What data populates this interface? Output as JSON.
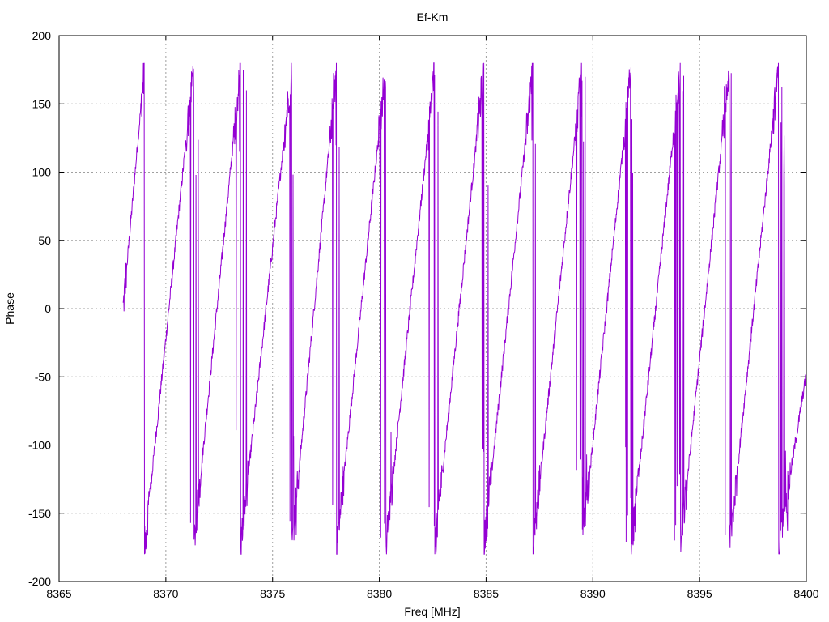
{
  "chart_data": {
    "type": "line",
    "title": "Ef-Km",
    "xlabel": "Freq [MHz]",
    "ylabel": "Phase",
    "xlim": [
      8365,
      8400
    ],
    "ylim": [
      -200,
      200
    ],
    "xticks": [
      8365,
      8370,
      8375,
      8380,
      8385,
      8390,
      8395,
      8400
    ],
    "yticks": [
      -200,
      -150,
      -100,
      -50,
      0,
      50,
      100,
      150,
      200
    ],
    "grid": true,
    "line_color": "#9400d3",
    "series": [
      {
        "name": "",
        "x_range": [
          8368.0,
          8400.0
        ],
        "phase_start": 0,
        "wrap_freqs": [
          8369.0,
          8371.3,
          8373.5,
          8375.9,
          8378.0,
          8380.3,
          8382.6,
          8384.9,
          8387.2,
          8389.5,
          8391.8,
          8394.1,
          8396.4,
          8398.7
        ],
        "slope_deg_per_mhz": 156
      }
    ]
  }
}
